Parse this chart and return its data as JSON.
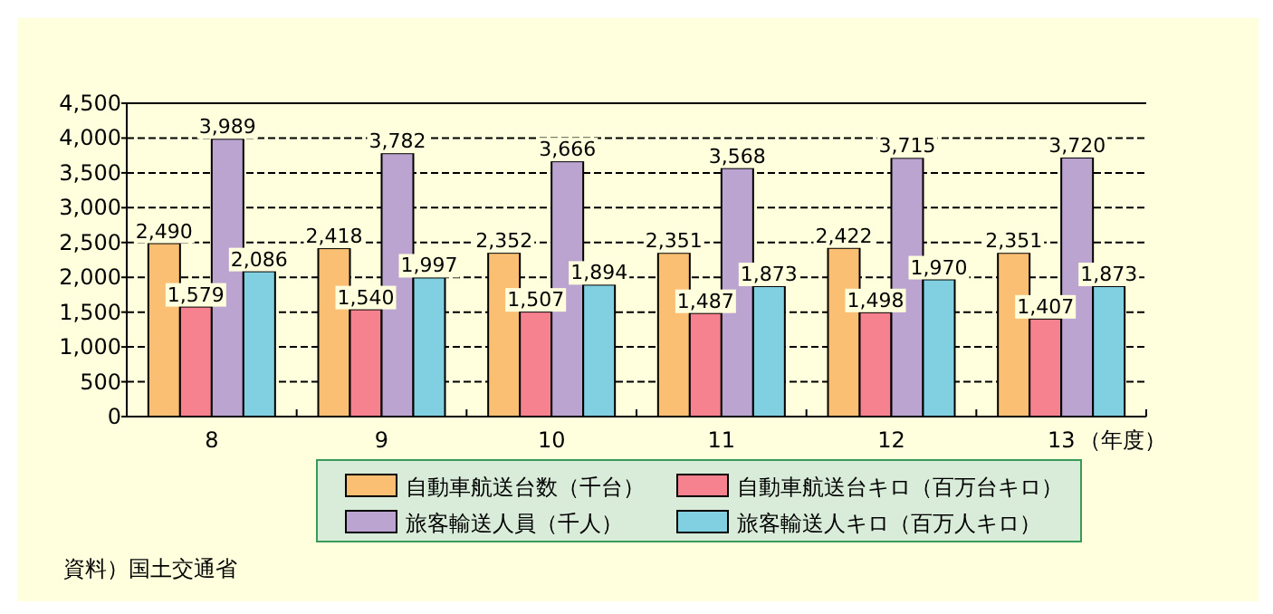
{
  "chart_data": {
    "type": "bar",
    "categories": [
      "8",
      "9",
      "10",
      "11",
      "12",
      "13"
    ],
    "xlabel": "（年度）",
    "series": [
      {
        "name": "自動車航送台数（千台）",
        "color": "#fbbf73",
        "values": [
          2490,
          2418,
          2352,
          2351,
          2422,
          2351
        ],
        "value_labels": [
          "2,490",
          "2,418",
          "2,352",
          "2,351",
          "2,422",
          "2,351"
        ]
      },
      {
        "name": "自動車航送台キロ（百万台キロ）",
        "color": "#f7828f",
        "values": [
          1579,
          1540,
          1507,
          1487,
          1498,
          1407
        ],
        "value_labels": [
          "1,579",
          "1,540",
          "1,507",
          "1,487",
          "1,498",
          "1,407"
        ]
      },
      {
        "name": "旅客輸送人員（千人）",
        "color": "#bca4d1",
        "values": [
          3989,
          3782,
          3666,
          3568,
          3715,
          3720
        ],
        "value_labels": [
          "3,989",
          "3,782",
          "3,666",
          "3,568",
          "3,715",
          "3,720"
        ]
      },
      {
        "name": "旅客輸送人キロ（百万人キロ）",
        "color": "#80d0e2",
        "values": [
          2086,
          1997,
          1894,
          1873,
          1970,
          1873
        ],
        "value_labels": [
          "2,086",
          "1,997",
          "1,894",
          "1,873",
          "1,970",
          "1,873"
        ]
      }
    ],
    "ylim": [
      0,
      4500
    ],
    "yticks": [
      {
        "value": 0,
        "label": "0"
      },
      {
        "value": 500,
        "label": "500"
      },
      {
        "value": 1000,
        "label": "1,000"
      },
      {
        "value": 1500,
        "label": "1,500"
      },
      {
        "value": 2000,
        "label": "2,000"
      },
      {
        "value": 2500,
        "label": "2,500"
      },
      {
        "value": 3000,
        "label": "3,000"
      },
      {
        "value": 3500,
        "label": "3,500"
      },
      {
        "value": 4000,
        "label": "4,000"
      },
      {
        "value": 4500,
        "label": "4,500"
      }
    ],
    "grid": "y",
    "legend": "bottom",
    "annotations": [
      "資料）国土交通省"
    ]
  }
}
